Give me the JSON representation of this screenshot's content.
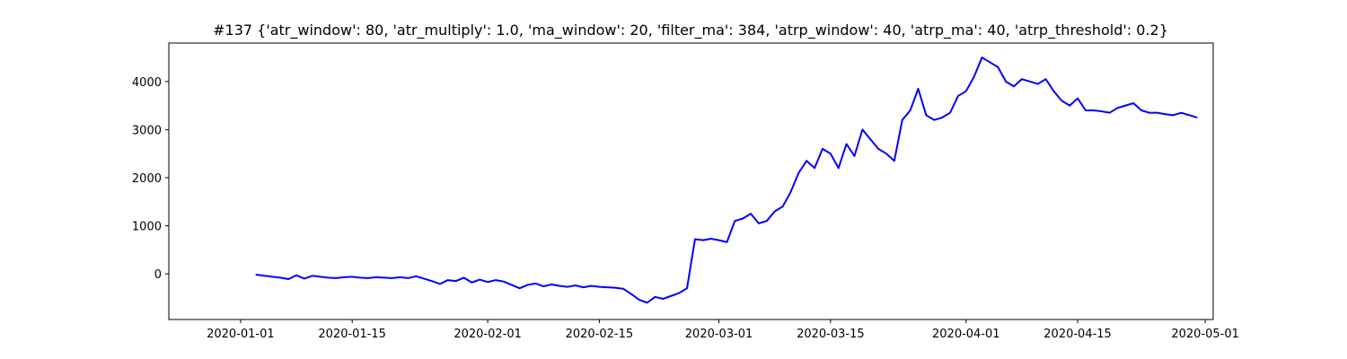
{
  "chart_data": {
    "type": "line",
    "title": "#137 {'atr_window': 80, 'atr_multiply': 1.0, 'ma_window': 20, 'filter_ma': 384, 'atrp_window': 40, 'atrp_ma': 40, 'atrp_threshold': 0.2}",
    "xlabel": "",
    "ylabel": "",
    "xlim": [
      "2019-12-23",
      "2020-05-02"
    ],
    "ylim": [
      -950,
      4800
    ],
    "x_ticks": [
      "2020-01-01",
      "2020-01-15",
      "2020-02-01",
      "2020-02-15",
      "2020-03-01",
      "2020-03-15",
      "2020-04-01",
      "2020-04-15",
      "2020-05-01"
    ],
    "y_ticks": [
      0,
      1000,
      2000,
      3000,
      4000
    ],
    "grid": false,
    "series": [
      {
        "color": "#0000ff",
        "x": [
          "2020-01-03",
          "2020-01-03",
          "2020-01-04",
          "2020-01-05",
          "2020-01-06",
          "2020-01-07",
          "2020-01-08",
          "2020-01-09",
          "2020-01-10",
          "2020-01-11",
          "2020-01-12",
          "2020-01-13",
          "2020-01-14",
          "2020-01-15",
          "2020-01-16",
          "2020-01-17",
          "2020-01-18",
          "2020-01-19",
          "2020-01-20",
          "2020-01-21",
          "2020-01-22",
          "2020-01-23",
          "2020-01-24",
          "2020-01-25",
          "2020-01-26",
          "2020-01-27",
          "2020-01-28",
          "2020-01-29",
          "2020-01-30",
          "2020-01-31",
          "2020-02-01",
          "2020-02-02",
          "2020-02-03",
          "2020-02-04",
          "2020-02-05",
          "2020-02-06",
          "2020-02-07",
          "2020-02-08",
          "2020-02-09",
          "2020-02-10",
          "2020-02-11",
          "2020-02-12",
          "2020-02-13",
          "2020-02-14",
          "2020-02-15",
          "2020-02-16",
          "2020-02-17",
          "2020-02-18",
          "2020-02-19",
          "2020-02-20",
          "2020-02-21",
          "2020-02-22",
          "2020-02-23",
          "2020-02-24",
          "2020-02-25",
          "2020-02-26",
          "2020-02-27",
          "2020-02-28",
          "2020-02-29",
          "2020-03-01",
          "2020-03-02",
          "2020-03-03",
          "2020-03-04",
          "2020-03-05",
          "2020-03-06",
          "2020-03-07",
          "2020-03-08",
          "2020-03-09",
          "2020-03-10",
          "2020-03-11",
          "2020-03-12",
          "2020-03-13",
          "2020-03-14",
          "2020-03-15",
          "2020-03-16",
          "2020-03-17",
          "2020-03-18",
          "2020-03-19",
          "2020-03-20",
          "2020-03-21",
          "2020-03-22",
          "2020-03-23",
          "2020-03-24",
          "2020-03-25",
          "2020-03-26",
          "2020-03-27",
          "2020-03-28",
          "2020-03-29",
          "2020-03-30",
          "2020-03-31",
          "2020-04-01",
          "2020-04-02",
          "2020-04-03",
          "2020-04-04",
          "2020-04-05",
          "2020-04-06",
          "2020-04-07",
          "2020-04-08",
          "2020-04-09",
          "2020-04-10",
          "2020-04-11",
          "2020-04-12",
          "2020-04-13",
          "2020-04-14",
          "2020-04-15",
          "2020-04-16",
          "2020-04-17",
          "2020-04-18",
          "2020-04-19",
          "2020-04-20",
          "2020-04-21",
          "2020-04-22",
          "2020-04-23",
          "2020-04-24",
          "2020-04-25",
          "2020-04-26",
          "2020-04-27",
          "2020-04-28",
          "2020-04-29",
          "2020-04-30"
        ],
        "y": [
          0,
          -20,
          -40,
          -60,
          -80,
          -110,
          -30,
          -100,
          -40,
          -60,
          -80,
          -90,
          -70,
          -60,
          -80,
          -90,
          -70,
          -80,
          -90,
          -70,
          -90,
          -50,
          -100,
          -150,
          -210,
          -130,
          -150,
          -80,
          -180,
          -120,
          -170,
          -130,
          -160,
          -230,
          -300,
          -230,
          -200,
          -260,
          -220,
          -250,
          -270,
          -240,
          -280,
          -250,
          -270,
          -280,
          -290,
          -310,
          -420,
          -540,
          -600,
          -480,
          -520,
          -460,
          -400,
          -300,
          720,
          700,
          730,
          700,
          660,
          1100,
          1150,
          1250,
          1050,
          1100,
          1300,
          1400,
          1700,
          2100,
          2350,
          2200,
          2600,
          2500,
          2200,
          2700,
          2450,
          3000,
          2800,
          2600,
          2500,
          2350,
          3200,
          3400,
          3850,
          3300,
          3200,
          3250,
          3350,
          3700,
          3800,
          4100,
          4500,
          4400,
          4300,
          4000,
          3900,
          4050,
          4000,
          3950,
          4050,
          3800,
          3600,
          3500,
          3650,
          3400,
          3400,
          3380,
          3350,
          3450,
          3500,
          3550,
          3400,
          3350,
          3350,
          3320,
          3300,
          3350,
          3300,
          3250
        ]
      }
    ]
  }
}
